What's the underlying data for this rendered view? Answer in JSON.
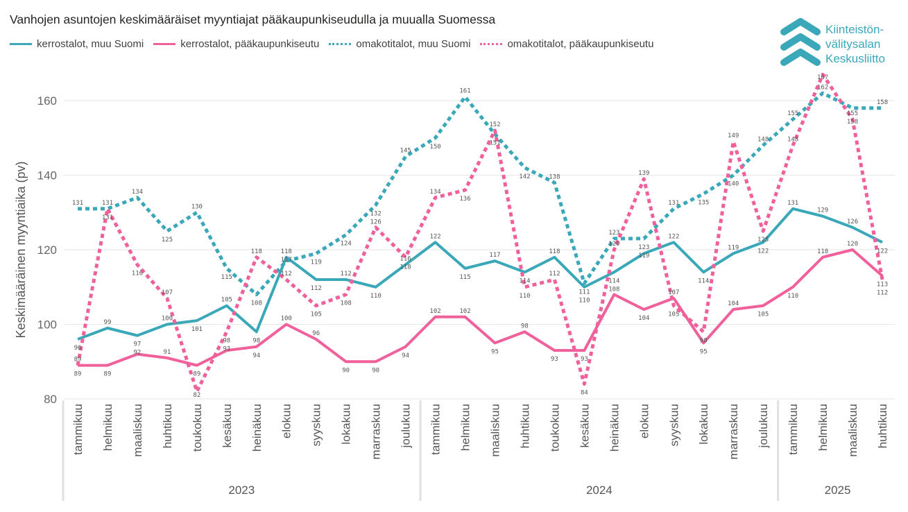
{
  "chart_data": {
    "type": "line",
    "title": "Vanhojen asuntojen keskimääräiset myyntiajat pääkaupunkiseudulla ja muualla Suomessa",
    "ylabel": "Keskimääräinen myyntiaika (pv)",
    "xlabel": "",
    "ylim": [
      80,
      168
    ],
    "yticks": [
      80,
      100,
      120,
      140,
      160
    ],
    "grid": true,
    "legend_position": "top-left",
    "years": [
      {
        "label": "2023",
        "months": 12
      },
      {
        "label": "2024",
        "months": 12
      },
      {
        "label": "2025",
        "months": 4
      }
    ],
    "categories": [
      "tammikuu",
      "helmikuu",
      "maaliskuu",
      "huhtikuu",
      "toukokuu",
      "kesäkuu",
      "heinäkuu",
      "elokuu",
      "syyskuu",
      "lokakuu",
      "marraskuu",
      "joulukuu",
      "tammikuu",
      "helmikuu",
      "maaliskuu",
      "huhtikuu",
      "toukokuu",
      "kesäkuu",
      "heinäkuu",
      "elokuu",
      "syyskuu",
      "lokakuu",
      "marraskuu",
      "joulukuu",
      "tammikuu",
      "helmikuu",
      "maaliskuu",
      "huhtikuu"
    ],
    "series": [
      {
        "name": "kerrostalot, muu Suomi",
        "color": "#3aa8b8",
        "style": "solid",
        "values": [
          96,
          99,
          97,
          100,
          101,
          105,
          98,
          118,
          112,
          112,
          110,
          116,
          122,
          115,
          117,
          114,
          118,
          110,
          114,
          119,
          122,
          114,
          119,
          122,
          131,
          129,
          126,
          122
        ]
      },
      {
        "name": "kerrostalot, pääkaupunkiseutu",
        "color": "#f0609a",
        "style": "solid",
        "values": [
          89,
          89,
          92,
          91,
          89,
          93,
          94,
          100,
          96,
          90,
          90,
          94,
          102,
          102,
          95,
          98,
          93,
          93,
          108,
          104,
          107,
          95,
          104,
          105,
          110,
          118,
          120,
          113
        ]
      },
      {
        "name": "omakotitalot, muu Suomi",
        "color": "#3aa8b8",
        "style": "dotted",
        "values": [
          131,
          131,
          134,
          125,
          130,
          115,
          108,
          117,
          119,
          124,
          132,
          145,
          150,
          161,
          151,
          142,
          138,
          111,
          123,
          123,
          131,
          135,
          140,
          148,
          155,
          162,
          158,
          158
        ]
      },
      {
        "name": "omakotitalot, pääkaupunkiseutu",
        "color": "#f0609a",
        "style": "dotted",
        "values": [
          89,
          131,
          116,
          107,
          82,
          98,
          118,
          112,
          105,
          108,
          126,
          118,
          134,
          136,
          152,
          110,
          112,
          84,
          120,
          139,
          105,
          98,
          149,
          125,
          148,
          167,
          155,
          112
        ]
      }
    ]
  },
  "logo": {
    "text": "Kiinteistönvälitysalan Keskusliitto",
    "lines": [
      "Kiinteistön-",
      "välitysalan",
      "Keskusliitto"
    ],
    "color": "#3aa8b8"
  }
}
